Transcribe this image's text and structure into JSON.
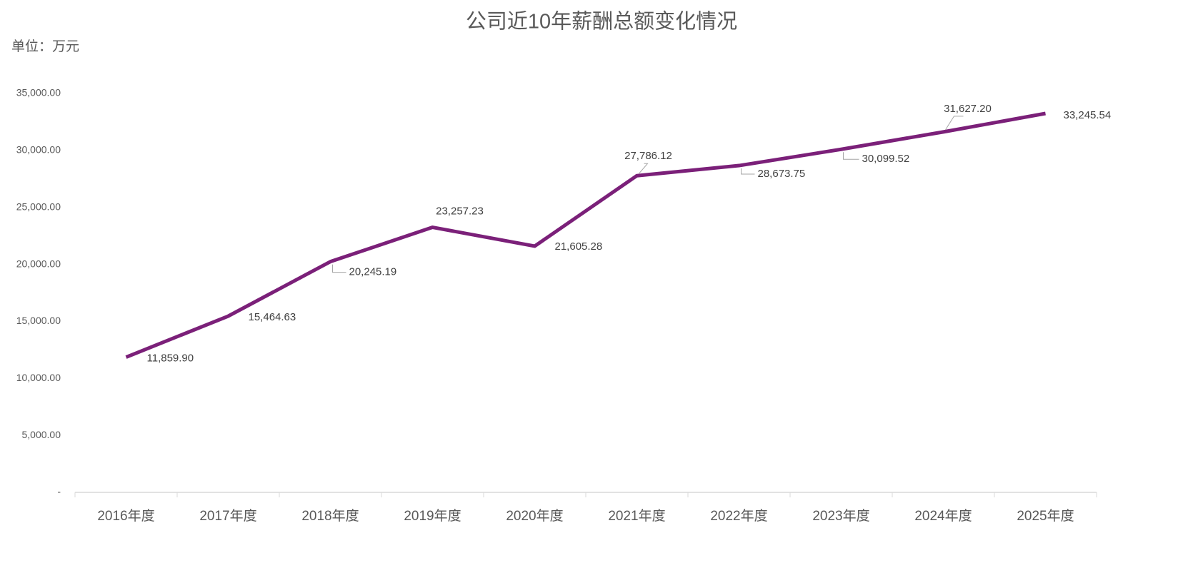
{
  "chart_data": {
    "type": "line",
    "title": "公司近10年薪酬总额变化情况",
    "unit_label": "单位：万元",
    "categories": [
      "2016年度",
      "2017年度",
      "2018年度",
      "2019年度",
      "2020年度",
      "2021年度",
      "2022年度",
      "2023年度",
      "2024年度",
      "2025年度"
    ],
    "series": [
      {
        "name": "薪酬总额",
        "color": "#7b2079",
        "values": [
          11859.9,
          15464.63,
          20245.19,
          23257.23,
          21605.28,
          27786.12,
          28673.75,
          30099.52,
          31627.2,
          33245.54
        ],
        "value_labels": [
          "11,859.90",
          "15,464.63",
          "20,245.19",
          "23,257.23",
          "21,605.28",
          "27,786.12",
          "28,673.75",
          "30,099.52",
          "31,627.20",
          "33,245.54"
        ]
      }
    ],
    "ylim": [
      0,
      35000
    ],
    "yticks": [
      {
        "value": 0,
        "label": "-"
      },
      {
        "value": 5000,
        "label": "5,000.00"
      },
      {
        "value": 10000,
        "label": "10,000.00"
      },
      {
        "value": 15000,
        "label": "15,000.00"
      },
      {
        "value": 20000,
        "label": "20,000.00"
      },
      {
        "value": 25000,
        "label": "25,000.00"
      },
      {
        "value": 30000,
        "label": "30,000.00"
      },
      {
        "value": 35000,
        "label": "35,000.00"
      }
    ],
    "grid": false
  }
}
